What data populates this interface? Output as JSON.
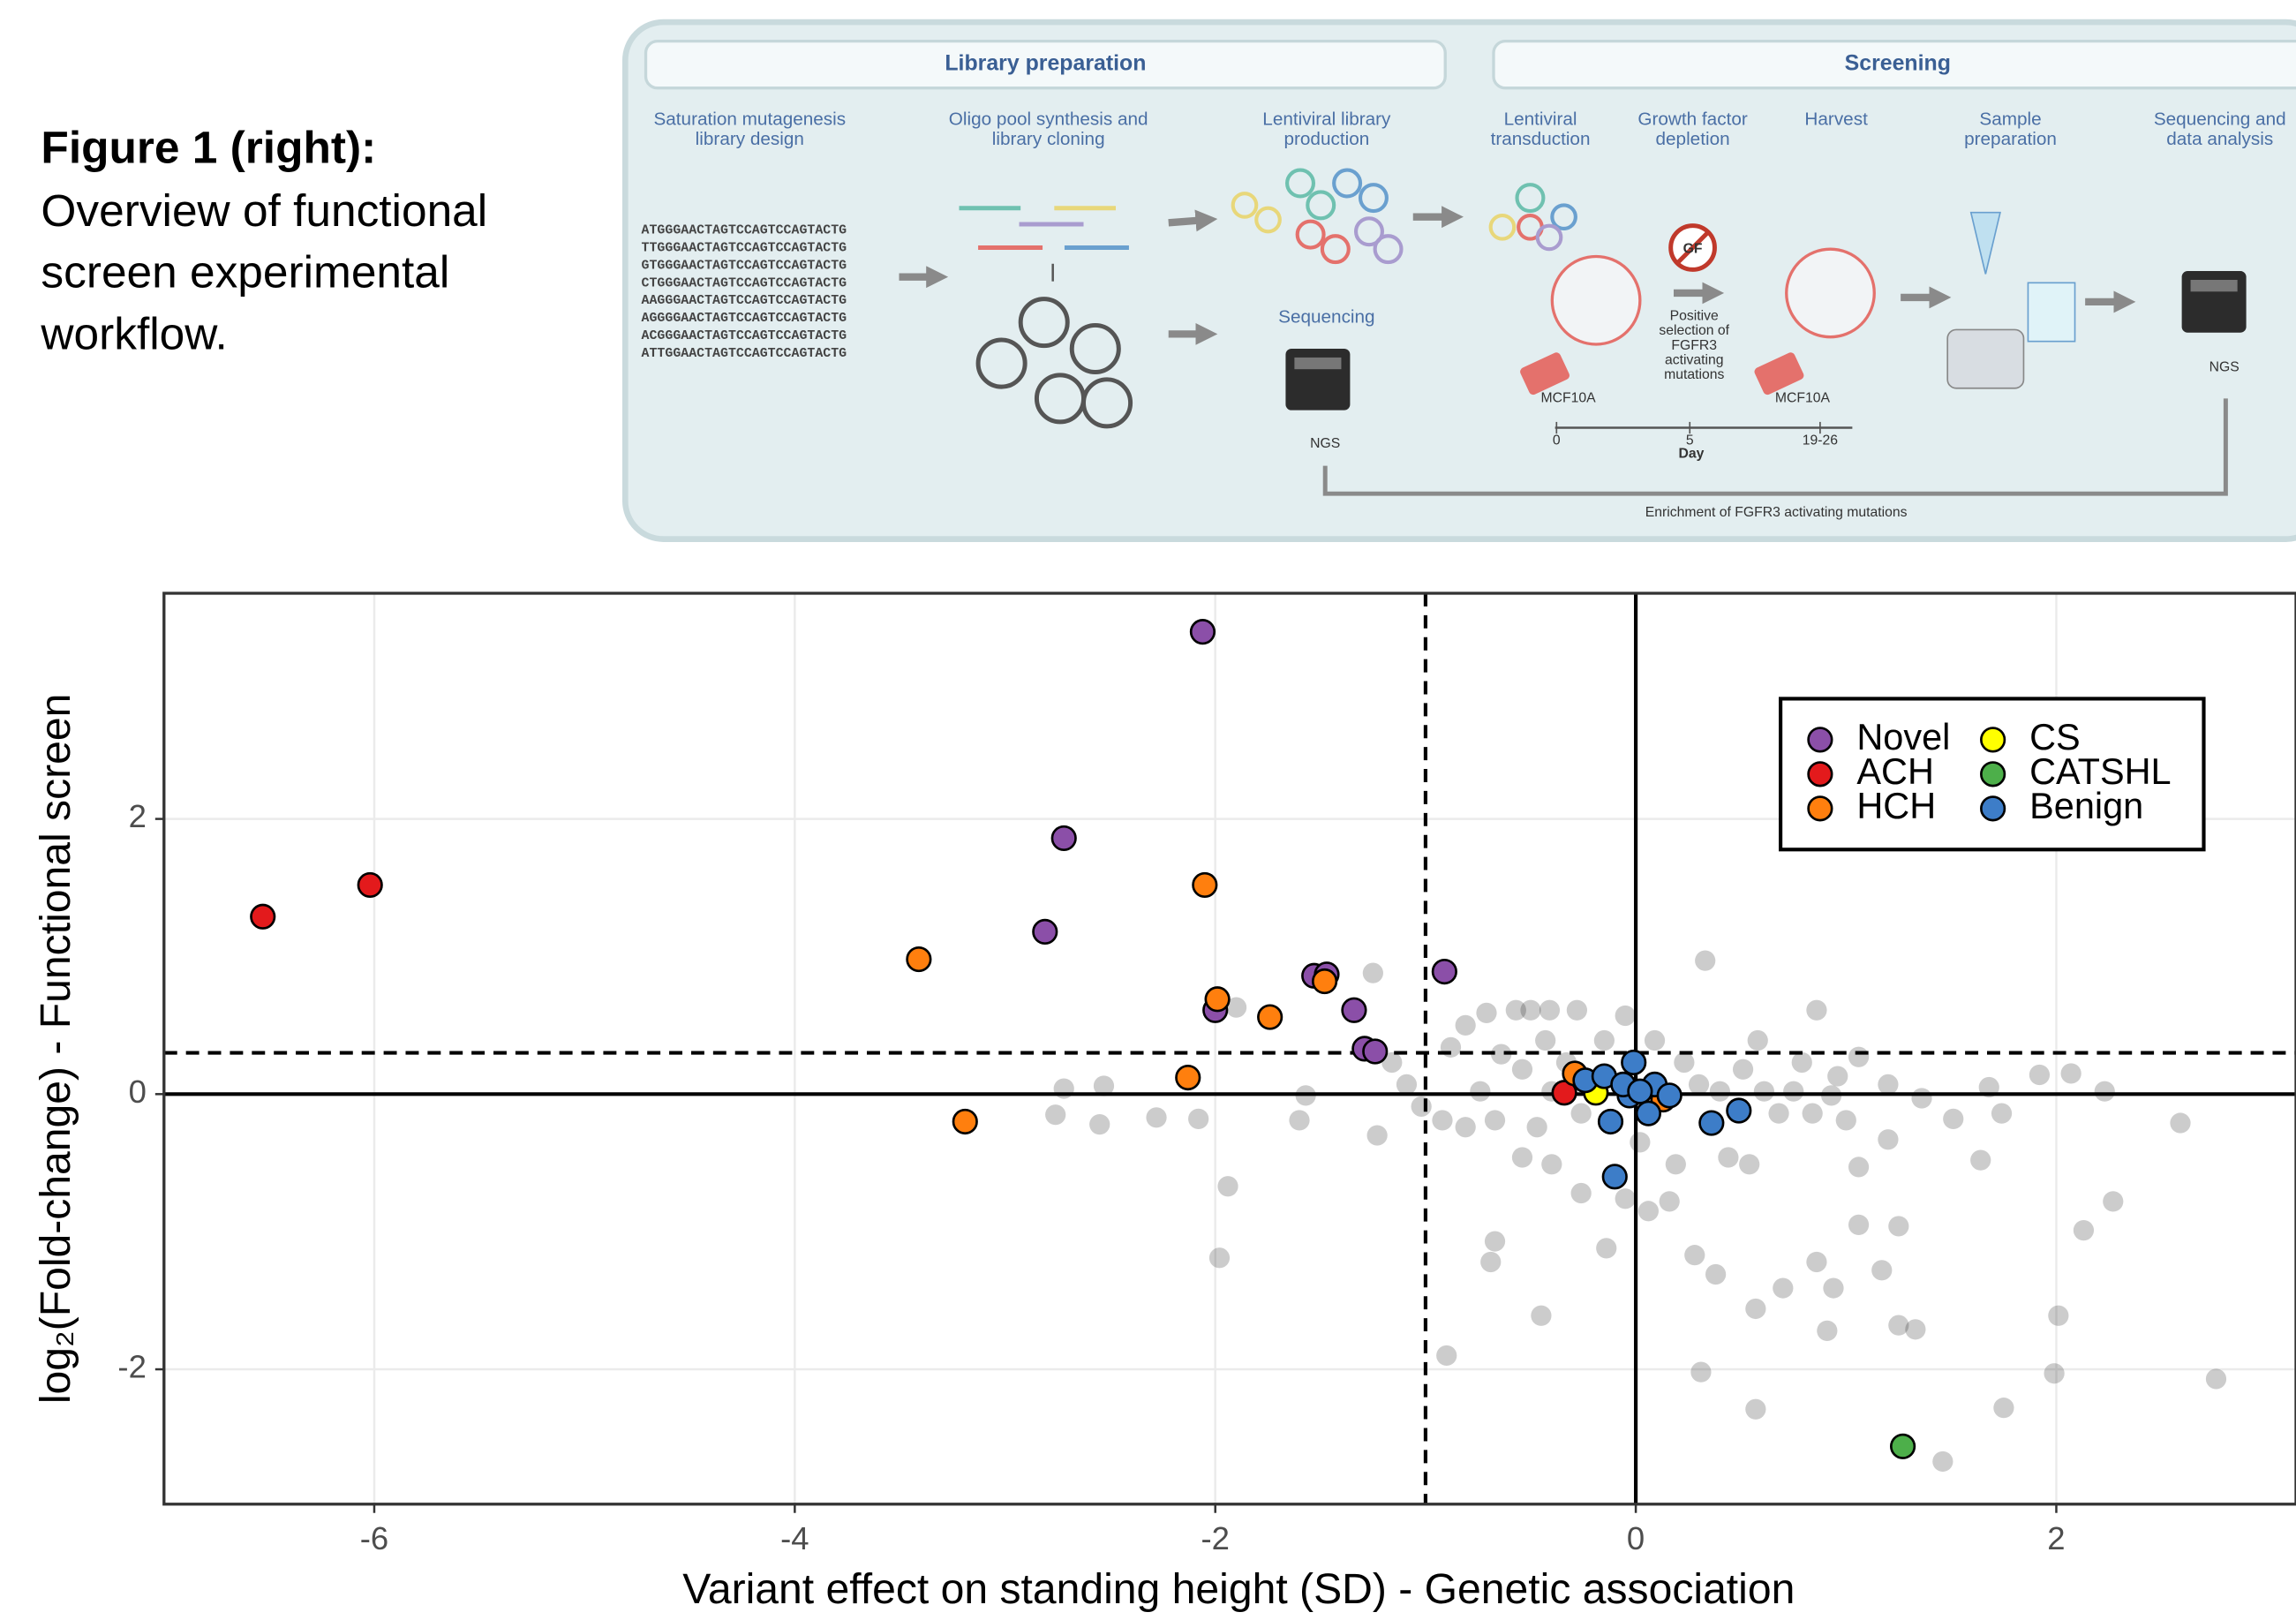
{
  "caption": {
    "title": "Figure 1 (right):",
    "lines": [
      "Overview of functional",
      "screen experimental",
      "workflow."
    ]
  },
  "workflow": {
    "sections": [
      "Library preparation",
      "Screening"
    ],
    "steps": [
      [
        "Saturation mutagenesis",
        "library design"
      ],
      [
        "Oligo pool synthesis and",
        "library cloning"
      ],
      [
        "Lentiviral library",
        "production"
      ],
      [
        "Lentiviral",
        "transduction"
      ],
      [
        "Growth factor",
        "depletion"
      ],
      [
        "Harvest"
      ],
      [
        "Sample",
        "preparation"
      ],
      [
        "Sequencing and",
        "data analysis"
      ]
    ],
    "sequences": [
      "ATGGGAACTAGTCCAGTCCAGTACTG",
      "TTGGGAACTAGTCCAGTCCAGTACTG",
      "GTGGGAACTAGTCCAGTCCAGTACTG",
      "CTGGGAACTAGTCCAGTCCAGTACTG",
      "AAGGGAACTAGTCCAGTCCAGTACTG",
      "AGGGGAACTAGTCCAGTCCAGTACTG",
      "ACGGGAACTAGTCCAGTCCAGTACTG",
      "ATTGGAACTAGTCCAGTCCAGTACTG"
    ],
    "sequencing": "Sequencing",
    "ngs_left": "NGS",
    "ngs_right": "NGS",
    "cell_line_1": "MCF10A",
    "cell_line_2": "MCF10A",
    "gf": "GF",
    "selection": [
      "Positive",
      "selection of",
      "FGFR3",
      "activating",
      "mutations"
    ],
    "timeline": [
      "0",
      "5",
      "19-26"
    ],
    "timeline_unit": "Day",
    "enrichment": "Enrichment of FGFR3 activating mutations"
  },
  "chart_data": {
    "type": "scatter",
    "x_label": "Variant effect on standing height (SD) - Genetic association",
    "y_label": "log₂(Fold-change) - Functional screen",
    "xlim": [
      -7,
      3.14
    ],
    "ylim": [
      -2.98,
      3.64
    ],
    "xticks": [
      -6,
      -4,
      -2,
      0,
      2
    ],
    "yticks": [
      -2,
      0,
      2
    ],
    "grid": true,
    "vlines": [
      {
        "value": 0,
        "style": "solid"
      },
      {
        "value": -1,
        "style": "dashed"
      }
    ],
    "hlines": [
      {
        "value": 0,
        "style": "solid"
      },
      {
        "value": 0.3,
        "style": "dashed"
      }
    ],
    "background": {
      "color": "#000000",
      "x": [
        0.33,
        0.86,
        -1.25,
        -1.9,
        -2.72,
        -2.53,
        -2.76,
        -2.55,
        -2.28,
        -2.08,
        -1.94,
        -1.98,
        -1.6,
        -1.57,
        -1.23,
        -0.9,
        -0.67,
        -0.69,
        -0.45,
        -0.14,
        0.06,
        0.31,
        0.28,
        0.38,
        0.57,
        0.57,
        0.7,
        0.86,
        0.91,
        0.94,
        1.06,
        1.17,
        1.25,
        1.25,
        1.33,
        1.46,
        1.64,
        1.75,
        1.99,
        2.01,
        2.13,
        2.27,
        2.23,
        2.76,
        2.59,
        2.07,
        1.92,
        1.68,
        1.74,
        1.51,
        1.36,
        1.2,
        1.06,
        1.2,
        1.06,
        0.84,
        0.79,
        0.58,
        0.54,
        0.44,
        0.19,
        0.16,
        -0.05,
        -0.26,
        -0.4,
        -0.54,
        -0.71,
        -0.57,
        -0.5,
        -0.41,
        -0.28,
        -0.05,
        -0.81,
        -0.88,
        -1.16,
        -1.09,
        -1.02,
        -0.81,
        -0.67,
        -0.54,
        -0.47,
        -0.4,
        -0.33,
        -0.26,
        0.23,
        0.3,
        0.4,
        0.51,
        0.61,
        0.68,
        -0.64,
        -0.74,
        -0.92,
        0.93,
        0.75,
        1.0,
        0.96,
        -0.15,
        0.09,
        -0.43,
        0.02
      ],
      "y": [
        0.97,
        0.61,
        0.88,
        0.63,
        0.04,
        0.06,
        -0.15,
        -0.22,
        -0.17,
        -0.18,
        -0.67,
        -1.19,
        -0.19,
        -0.01,
        -0.3,
        -1.9,
        -1.07,
        -1.22,
        -1.61,
        -1.12,
        -0.85,
        -2.02,
        -1.17,
        -1.31,
        -1.56,
        -2.29,
        -1.41,
        -1.22,
        -1.72,
        -1.41,
        -0.95,
        -1.28,
        -0.96,
        -1.68,
        -1.71,
        -2.67,
        -0.48,
        -2.28,
        -2.03,
        -1.61,
        -0.99,
        -0.78,
        0.02,
        -2.07,
        -0.21,
        0.15,
        0.14,
        0.05,
        -0.14,
        -0.18,
        -0.03,
        0.07,
        0.27,
        -0.33,
        -0.53,
        -0.14,
        0.23,
        0.39,
        -0.51,
        -0.46,
        -0.51,
        -0.78,
        -0.76,
        -0.72,
        -0.51,
        -0.46,
        0.59,
        0.61,
        0.61,
        0.61,
        0.61,
        0.57,
        0.5,
        0.34,
        0.23,
        0.07,
        -0.09,
        -0.24,
        -0.19,
        0.18,
        -0.24,
        0.02,
        0.23,
        -0.14,
        0.23,
        0.07,
        0.02,
        0.18,
        0.02,
        -0.14,
        0.29,
        0.02,
        -0.19,
        -0.01,
        0.02,
        -0.19,
        0.13,
        0.39,
        0.39,
        0.39,
        -0.35
      ]
    },
    "series": [
      {
        "name": "Novel",
        "color": "#8b4fa8",
        "x": [
          -2.06,
          -2.72,
          -2.81,
          -1.53,
          -1.47,
          -0.91,
          -2.0,
          -1.34,
          -1.29,
          -1.24
        ],
        "values": [
          3.36,
          1.86,
          1.18,
          0.86,
          0.87,
          0.89,
          0.61,
          0.61,
          0.33,
          0.31
        ]
      },
      {
        "name": "ACH",
        "color": "#e31a1c",
        "x": [
          -6.53,
          -6.02,
          -0.34
        ],
        "values": [
          1.29,
          1.52,
          0.01
        ]
      },
      {
        "name": "HCH",
        "color": "#ff7f0e",
        "x": [
          -3.41,
          -3.19,
          -2.05,
          -1.99,
          -1.74,
          -1.48,
          -2.13,
          -0.29,
          0.13
        ],
        "values": [
          0.98,
          -0.2,
          1.52,
          0.69,
          0.56,
          0.82,
          0.12,
          0.15,
          -0.04
        ]
      },
      {
        "name": "CS",
        "color": "#ffff00",
        "x": [
          -0.19
        ],
        "values": [
          0.01
        ]
      },
      {
        "name": "CATSHL",
        "color": "#4daf4a",
        "x": [
          1.27
        ],
        "values": [
          -2.56
        ]
      },
      {
        "name": "Benign",
        "color": "#3d7dc8",
        "x": [
          -0.1,
          -0.01,
          0.36,
          0.49,
          -0.24,
          -0.15,
          -0.12,
          0.06,
          0.09,
          -0.03,
          -0.06,
          0.02,
          0.16
        ],
        "values": [
          -0.6,
          0.23,
          -0.21,
          -0.12,
          0.1,
          0.13,
          -0.2,
          -0.14,
          0.07,
          -0.01,
          0.07,
          0.02,
          -0.01
        ]
      }
    ]
  }
}
